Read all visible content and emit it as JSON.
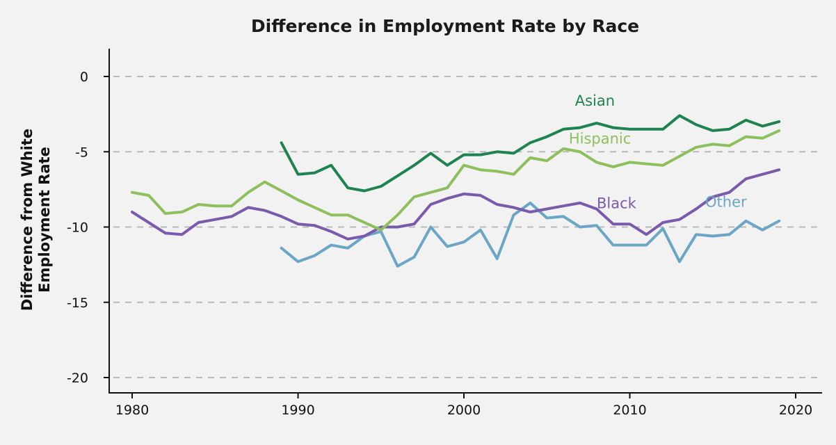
{
  "chart_data": {
    "type": "line",
    "title": "Difference in Employment Rate by Race",
    "ylabel": "Difference from White Employment Rate",
    "ylabel_lines": [
      "Difference from White",
      "Employment Rate"
    ],
    "xlabel": "",
    "xlim": [
      1979,
      2021.5
    ],
    "ylim": [
      -21,
      2.5
    ],
    "xticks": [
      1980,
      1990,
      2000,
      2010,
      2020
    ],
    "yticks": [
      0,
      -5,
      -10,
      -15,
      -20
    ],
    "ytick_labels": [
      "0",
      "-5",
      "-10",
      "-15",
      "-20"
    ],
    "grid": "horizontal dashed",
    "series": [
      {
        "name": "Asian",
        "color": "#1e8350",
        "x": [
          1989,
          1990,
          1991,
          1992,
          1993,
          1994,
          1995,
          1996,
          1997,
          1998,
          1999,
          2000,
          2001,
          2002,
          2003,
          2004,
          2005,
          2006,
          2007,
          2008,
          2009,
          2010,
          2011,
          2012,
          2013,
          2014,
          2015,
          2016,
          2017,
          2018,
          2019
        ],
        "values": [
          -4.4,
          -6.5,
          -6.4,
          -5.9,
          -7.4,
          -7.6,
          -7.3,
          -6.6,
          -5.9,
          -5.1,
          -5.9,
          -5.2,
          -5.2,
          -5.0,
          -5.1,
          -4.4,
          -4.0,
          -3.5,
          -3.4,
          -3.1,
          -3.4,
          -3.5,
          -3.5,
          -3.5,
          -2.6,
          -3.2,
          -3.6,
          -3.5,
          -2.9,
          -3.3,
          -3.0
        ]
      },
      {
        "name": "Hispanic",
        "color": "#8dbf5c",
        "x": [
          1980,
          1981,
          1982,
          1983,
          1984,
          1985,
          1986,
          1987,
          1988,
          1989,
          1990,
          1991,
          1992,
          1993,
          1994,
          1995,
          1996,
          1997,
          1998,
          1999,
          2000,
          2001,
          2002,
          2003,
          2004,
          2005,
          2006,
          2007,
          2008,
          2009,
          2010,
          2011,
          2012,
          2013,
          2014,
          2015,
          2016,
          2017,
          2018,
          2019
        ],
        "values": [
          -7.7,
          -7.9,
          -9.1,
          -9.0,
          -8.5,
          -8.6,
          -8.6,
          -7.7,
          -7.0,
          -7.6,
          -8.2,
          -8.7,
          -9.2,
          -9.2,
          -9.7,
          -10.2,
          -9.2,
          -8.0,
          -7.7,
          -7.4,
          -5.9,
          -6.2,
          -6.3,
          -6.5,
          -5.4,
          -5.6,
          -4.8,
          -5.0,
          -5.7,
          -6.0,
          -5.7,
          -5.8,
          -5.9,
          -5.3,
          -4.7,
          -4.5,
          -4.6,
          -4.0,
          -4.1,
          -3.6
        ]
      },
      {
        "name": "Black",
        "color": "#7a5aab",
        "x": [
          1980,
          1981,
          1982,
          1983,
          1984,
          1985,
          1986,
          1987,
          1988,
          1989,
          1990,
          1991,
          1992,
          1993,
          1994,
          1995,
          1996,
          1997,
          1998,
          1999,
          2000,
          2001,
          2002,
          2003,
          2004,
          2005,
          2006,
          2007,
          2008,
          2009,
          2010,
          2011,
          2012,
          2013,
          2014,
          2015,
          2016,
          2017,
          2018,
          2019
        ],
        "values": [
          -9.0,
          -9.7,
          -10.4,
          -10.5,
          -9.7,
          -9.5,
          -9.3,
          -8.7,
          -8.9,
          -9.3,
          -9.8,
          -9.9,
          -10.3,
          -10.8,
          -10.6,
          -10.0,
          -10.0,
          -9.8,
          -8.5,
          -8.1,
          -7.8,
          -7.9,
          -8.5,
          -8.7,
          -9.0,
          -8.8,
          -8.6,
          -8.4,
          -8.8,
          -9.8,
          -9.8,
          -10.5,
          -9.7,
          -9.5,
          -8.8,
          -8.0,
          -7.7,
          -6.8,
          -6.5,
          -6.2
        ]
      },
      {
        "name": "Other",
        "color": "#6ba6c6",
        "x": [
          1989,
          1990,
          1991,
          1992,
          1993,
          1994,
          1995,
          1996,
          1997,
          1998,
          1999,
          2000,
          2001,
          2002,
          2003,
          2004,
          2005,
          2006,
          2007,
          2008,
          2009,
          2010,
          2011,
          2012,
          2013,
          2014,
          2015,
          2016,
          2017,
          2018,
          2019
        ],
        "values": [
          -11.4,
          -12.3,
          -11.9,
          -11.2,
          -11.4,
          -10.6,
          -10.3,
          -12.6,
          -12.0,
          -10.0,
          -11.3,
          -11.0,
          -10.2,
          -12.1,
          -9.2,
          -8.4,
          -9.4,
          -9.3,
          -10.0,
          -9.9,
          -11.2,
          -11.2,
          -11.2,
          -10.1,
          -12.3,
          -10.5,
          -10.6,
          -10.5,
          -9.6,
          -10.2,
          -9.6
        ]
      }
    ],
    "series_labels": [
      {
        "name": "Asian",
        "x": 2007.9,
        "y": -1.95
      },
      {
        "name": "Hispanic",
        "x": 2008.2,
        "y": -4.45
      },
      {
        "name": "Black",
        "x": 2009.2,
        "y": -8.75
      },
      {
        "name": "Other",
        "x": 2015.8,
        "y": -8.65
      }
    ]
  }
}
